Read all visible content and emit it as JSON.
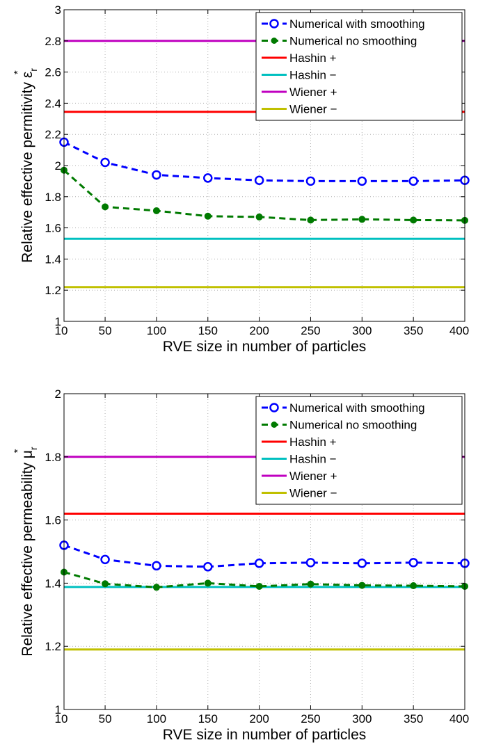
{
  "chart_data": [
    {
      "type": "line",
      "xlabel": "RVE size in number of particles",
      "ylabel": "Relative effective permitivity",
      "ylabel_symbol": "ε",
      "ylabel_sub": "r",
      "ylabel_sup": "*",
      "x": [
        10,
        50,
        100,
        150,
        200,
        250,
        300,
        350,
        400
      ],
      "xticks": [
        "10",
        "50",
        "100",
        "150",
        "200",
        "250",
        "300",
        "350",
        "400"
      ],
      "xlim": [
        10,
        400
      ],
      "ylim": [
        1,
        3
      ],
      "yticks": [
        "1",
        "1.2",
        "1.4",
        "1.6",
        "1.8",
        "2",
        "2.2",
        "2.4",
        "2.6",
        "2.8",
        "3"
      ],
      "grid": true,
      "legend_position": "top-right",
      "series": [
        {
          "name": "Numerical with smoothing",
          "kind": "line",
          "color": "#0000ff",
          "marker": "circle-open",
          "dash": true,
          "values": [
            2.15,
            2.02,
            1.94,
            1.92,
            1.905,
            1.9,
            1.9,
            1.9,
            1.905
          ]
        },
        {
          "name": "Numerical no smoothing",
          "kind": "line",
          "color": "#007a00",
          "marker": "dot",
          "dash": true,
          "values": [
            1.97,
            1.735,
            1.71,
            1.675,
            1.67,
            1.65,
            1.655,
            1.65,
            1.648
          ]
        },
        {
          "name": "Hashin +",
          "kind": "hline",
          "color": "#ff0000",
          "value": 2.345
        },
        {
          "name": "Hashin −",
          "kind": "hline",
          "color": "#00c0c0",
          "value": 1.53
        },
        {
          "name": "Wiener +",
          "kind": "hline",
          "color": "#c000c0",
          "value": 2.8
        },
        {
          "name": "Wiener −",
          "kind": "hline",
          "color": "#c0c000",
          "value": 1.22
        }
      ]
    },
    {
      "type": "line",
      "xlabel": "RVE size in number of particles",
      "ylabel": "Relative effective permeability",
      "ylabel_symbol": "μ",
      "ylabel_sub": "r",
      "ylabel_sup": "*",
      "x": [
        10,
        50,
        100,
        150,
        200,
        250,
        300,
        350,
        400
      ],
      "xticks": [
        "10",
        "50",
        "100",
        "150",
        "200",
        "250",
        "300",
        "350",
        "400"
      ],
      "xlim": [
        10,
        400
      ],
      "ylim": [
        1,
        2
      ],
      "yticks": [
        "1",
        "1.2",
        "1.4",
        "1.6",
        "1.8",
        "2"
      ],
      "grid": true,
      "legend_position": "top-right",
      "series": [
        {
          "name": "Numerical with smoothing",
          "kind": "line",
          "color": "#0000ff",
          "marker": "circle-open",
          "dash": true,
          "values": [
            1.52,
            1.475,
            1.455,
            1.452,
            1.463,
            1.465,
            1.463,
            1.465,
            1.463
          ]
        },
        {
          "name": "Numerical no smoothing",
          "kind": "line",
          "color": "#007a00",
          "marker": "dot",
          "dash": true,
          "values": [
            1.435,
            1.398,
            1.387,
            1.4,
            1.39,
            1.397,
            1.393,
            1.392,
            1.39
          ]
        },
        {
          "name": "Hashin +",
          "kind": "hline",
          "color": "#ff0000",
          "value": 1.62
        },
        {
          "name": "Hashin −",
          "kind": "hline",
          "color": "#00c0c0",
          "value": 1.388
        },
        {
          "name": "Wiener +",
          "kind": "hline",
          "color": "#c000c0",
          "value": 1.8
        },
        {
          "name": "Wiener −",
          "kind": "hline",
          "color": "#c0c000",
          "value": 1.19
        }
      ]
    }
  ]
}
